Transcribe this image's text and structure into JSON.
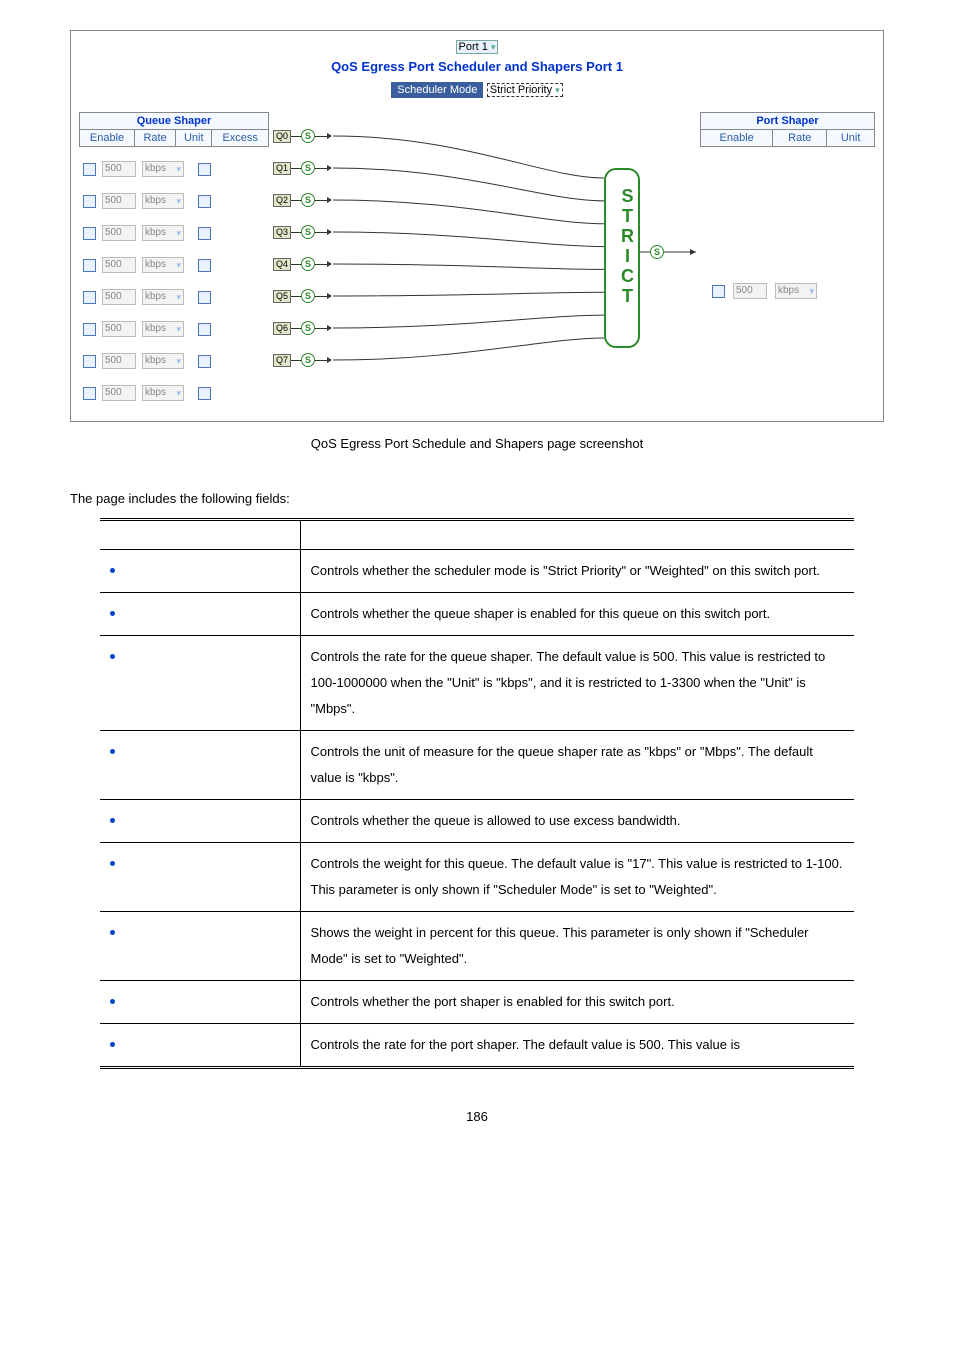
{
  "port_selector": {
    "value": "Port 1"
  },
  "main_title": "QoS Egress Port Scheduler and Shapers  Port 1",
  "scheduler_mode": {
    "label": "Scheduler Mode",
    "value": "Strict Priority"
  },
  "queue_shaper": {
    "group_title": "Queue Shaper",
    "headers": {
      "enable": "Enable",
      "rate": "Rate",
      "unit": "Unit",
      "excess": "Excess"
    },
    "rows": [
      {
        "enable": false,
        "rate": "500",
        "unit": "kbps",
        "excess": false
      },
      {
        "enable": false,
        "rate": "500",
        "unit": "kbps",
        "excess": false
      },
      {
        "enable": false,
        "rate": "500",
        "unit": "kbps",
        "excess": false
      },
      {
        "enable": false,
        "rate": "500",
        "unit": "kbps",
        "excess": false
      },
      {
        "enable": false,
        "rate": "500",
        "unit": "kbps",
        "excess": false
      },
      {
        "enable": false,
        "rate": "500",
        "unit": "kbps",
        "excess": false
      },
      {
        "enable": false,
        "rate": "500",
        "unit": "kbps",
        "excess": false
      },
      {
        "enable": false,
        "rate": "500",
        "unit": "kbps",
        "excess": false
      }
    ]
  },
  "port_shaper": {
    "group_title": "Port Shaper",
    "headers": {
      "enable": "Enable",
      "rate": "Rate",
      "unit": "Unit"
    },
    "enable": false,
    "rate": "500",
    "unit": "kbps"
  },
  "diagram": {
    "queue_tags": [
      "Q0",
      "Q1",
      "Q2",
      "Q3",
      "Q4",
      "Q5",
      "Q6",
      "Q7"
    ],
    "node_label": "S",
    "strict_vertical": "S\nT\nR\nI\nC\nT",
    "colors": {
      "accent": "#2a8a2a",
      "tag_bg": "#dfe8c8",
      "link": "#333333"
    }
  },
  "caption": "QoS Egress Port Schedule and Shapers page screenshot",
  "intro": "The page includes the following fields:",
  "fields": [
    {
      "desc": "Controls whether the scheduler mode is \"Strict Priority\" or \"Weighted\" on this switch port."
    },
    {
      "desc": "Controls whether the queue shaper is enabled for this queue on this switch port."
    },
    {
      "desc": "Controls the rate for the queue shaper. The default value is 500. This value is restricted to 100-1000000 when the \"Unit\" is \"kbps\", and it is restricted to 1-3300 when the \"Unit\" is \"Mbps\"."
    },
    {
      "desc": "Controls the unit of measure for the queue shaper rate as \"kbps\" or \"Mbps\". The default value is \"kbps\"."
    },
    {
      "desc": "Controls whether the queue is allowed to use excess bandwidth."
    },
    {
      "desc": "Controls the weight for this queue. The default value is \"17\". This value is restricted to 1-100. This parameter is only shown if \"Scheduler Mode\" is set to \"Weighted\"."
    },
    {
      "desc": "Shows the weight in percent for this queue. This parameter is only shown if \"Scheduler Mode\" is set to \"Weighted\"."
    },
    {
      "desc": "Controls whether the port shaper is enabled for this switch port."
    },
    {
      "desc": "Controls the rate for the port shaper. The default value is 500. This value is"
    }
  ],
  "page_number": "186"
}
